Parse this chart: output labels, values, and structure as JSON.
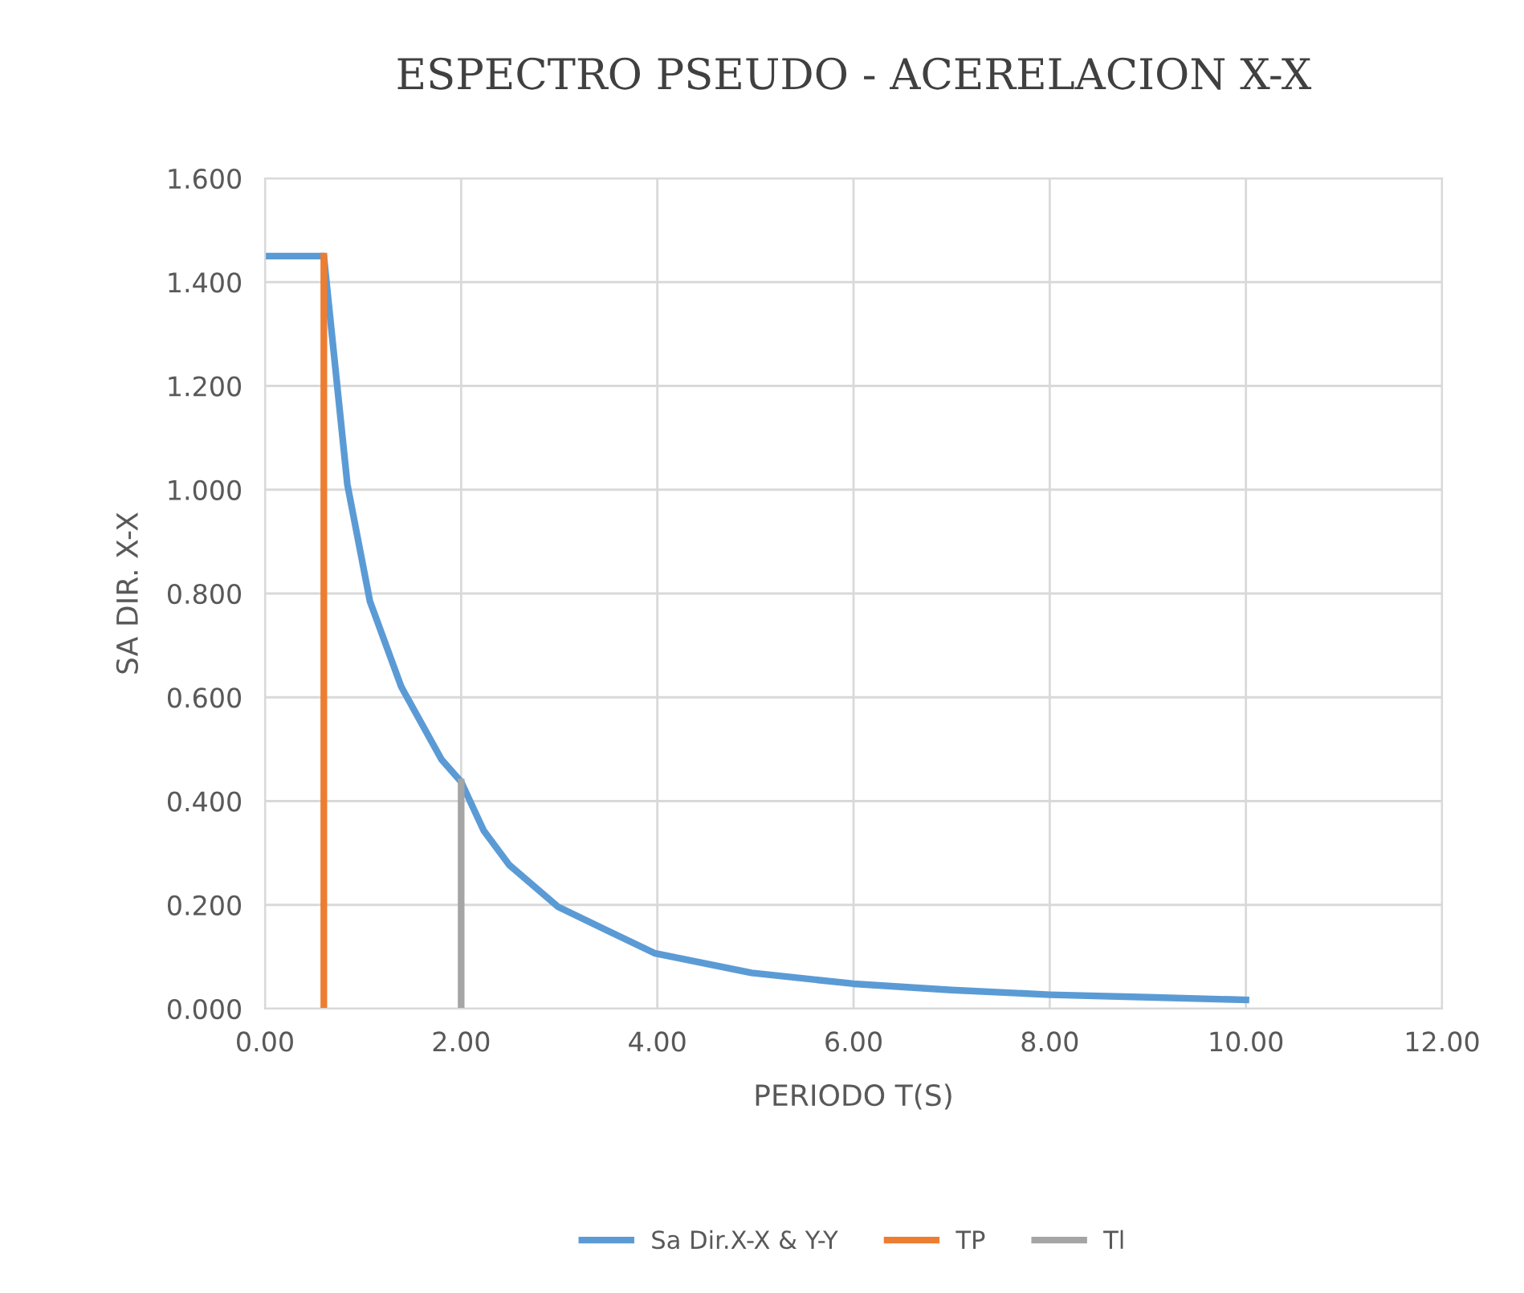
{
  "chart_data": {
    "type": "line",
    "title": "ESPECTRO PSEUDO - ACERELACION X-X",
    "xlabel": "PERIODO T(S)",
    "ylabel": "SA DIR. X-X",
    "series": [
      {
        "name": "Sa Dir.X-X & Y-Y",
        "color": "#5b9bd5",
        "x": [
          0,
          0.6,
          0.84,
          1.07,
          1.39,
          1.8,
          2.0,
          2.23,
          2.49,
          2.99,
          3.97,
          4.96,
          6.0,
          7.0,
          8.0,
          9.0,
          10.0
        ],
        "values": [
          1.45,
          1.45,
          1.01,
          0.785,
          0.62,
          0.48,
          0.437,
          0.343,
          0.277,
          0.196,
          0.107,
          0.069,
          0.048,
          0.036,
          0.027,
          0.022,
          0.017
        ]
      },
      {
        "name": "TP",
        "color": "#ed7d31",
        "x": [
          0.6,
          0.6
        ],
        "values": [
          0,
          1.45
        ]
      },
      {
        "name": "Tl",
        "color": "#a5a5a5",
        "x": [
          2.0,
          2.0
        ],
        "values": [
          0,
          0.437
        ]
      }
    ],
    "xlim": [
      0,
      12
    ],
    "xticks": [
      {
        "value": 0,
        "label": "0.00"
      },
      {
        "value": 2,
        "label": "2.00"
      },
      {
        "value": 4,
        "label": "4.00"
      },
      {
        "value": 6,
        "label": "6.00"
      },
      {
        "value": 8,
        "label": "8.00"
      },
      {
        "value": 10,
        "label": "10.00"
      },
      {
        "value": 12,
        "label": "12.00"
      }
    ],
    "ylim": [
      0,
      1.6
    ],
    "yticks": [
      {
        "value": 0,
        "label": "0.000"
      },
      {
        "value": 0.2,
        "label": "0.200"
      },
      {
        "value": 0.4,
        "label": "0.400"
      },
      {
        "value": 0.6,
        "label": "0.600"
      },
      {
        "value": 0.8,
        "label": "0.800"
      },
      {
        "value": 1.0,
        "label": "1.000"
      },
      {
        "value": 1.2,
        "label": "1.200"
      },
      {
        "value": 1.4,
        "label": "1.400"
      },
      {
        "value": 1.6,
        "label": "1.600"
      }
    ],
    "grid": true,
    "legend": "bottom",
    "marker": "none",
    "line_style": "solid"
  }
}
